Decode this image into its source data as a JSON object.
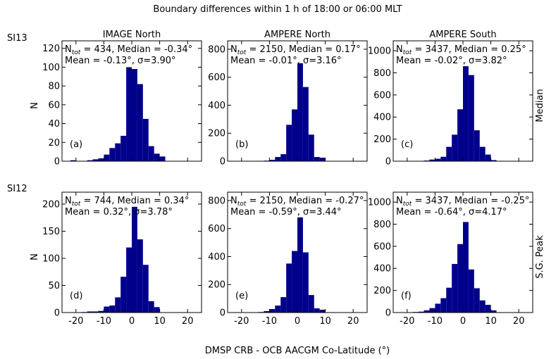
{
  "figure": {
    "suptitle": "Boundary differences within 1 h of 18:00 or 06:00 MLT",
    "xlabel": "DMSP CRB - OCB AACGM Co-Latitude (°)",
    "ylabel": "N",
    "row_labels": [
      "SI13",
      "SI12"
    ],
    "right_labels": [
      "Median",
      "S.G. Peak"
    ],
    "column_titles": [
      "IMAGE North",
      "AMPERE North",
      "AMPERE South"
    ],
    "bar_color": "#00008B"
  },
  "chart_data": [
    {
      "type": "bar",
      "panel": "(a)",
      "row": "SI13 / Median",
      "column": "IMAGE North",
      "stats_line1": "N_tot = 434, Median = -0.34°",
      "stats_line2": "Mean = -0.13°, σ=3.90°",
      "bin_width": 2,
      "bin_centers": [
        -21,
        -19,
        -15,
        -13,
        -11,
        -9,
        -7,
        -5,
        -3,
        -1,
        1,
        3,
        5,
        7,
        9,
        11
      ],
      "values": [
        1,
        0,
        1,
        2,
        3,
        7,
        14,
        19,
        27,
        100,
        98,
        82,
        45,
        16,
        8,
        5
      ],
      "xlim": [
        -25,
        25
      ],
      "ylim": [
        0,
        128
      ],
      "xticks": [
        -20,
        -10,
        0,
        10,
        20
      ],
      "yticks": [
        0,
        20,
        40,
        60,
        80,
        100,
        120
      ]
    },
    {
      "type": "bar",
      "panel": "(b)",
      "row": "SI13 / Median",
      "column": "AMPERE North",
      "stats_line1": "N_tot = 2150, Median = 0.17°",
      "stats_line2": "Mean = -0.01°, σ=3.16°",
      "bin_width": 2,
      "bin_centers": [
        -13,
        -11,
        -9,
        -7,
        -5,
        -3,
        -1,
        1,
        3,
        5,
        7,
        9
      ],
      "values": [
        2,
        4,
        10,
        30,
        50,
        260,
        370,
        700,
        530,
        190,
        30,
        25
      ],
      "xlim": [
        -25,
        25
      ],
      "ylim": [
        0,
        860
      ],
      "xticks": [
        -20,
        -10,
        0,
        10,
        20
      ],
      "yticks": [
        0,
        200,
        400,
        600,
        800
      ]
    },
    {
      "type": "bar",
      "panel": "(c)",
      "row": "SI13 / Median",
      "column": "AMPERE South",
      "stats_line1": "N_tot = 3437, Median = 0.25°",
      "stats_line2": "Mean = -0.02°, σ=3.82°",
      "bin_width": 2,
      "bin_centers": [
        -15,
        -13,
        -11,
        -9,
        -7,
        -5,
        -3,
        -1,
        1,
        3,
        5,
        7,
        9,
        11
      ],
      "values": [
        3,
        6,
        15,
        22,
        40,
        130,
        240,
        470,
        860,
        780,
        280,
        130,
        60,
        10
      ],
      "xlim": [
        -25,
        25
      ],
      "ylim": [
        0,
        1090
      ],
      "xticks": [
        -20,
        -10,
        0,
        10,
        20
      ],
      "yticks": [
        0,
        200,
        400,
        600,
        800,
        1000
      ]
    },
    {
      "type": "bar",
      "panel": "(d)",
      "row": "SI12 / S.G. Peak",
      "column": "IMAGE North",
      "stats_line1": "N_tot = 744, Median = 0.34°",
      "stats_line2": "Mean = 0.32°, σ=3.78°",
      "bin_width": 2,
      "bin_centers": [
        -17,
        -15,
        -13,
        -11,
        -9,
        -7,
        -5,
        -3,
        -1,
        1,
        3,
        5,
        7,
        9
      ],
      "values": [
        1,
        2,
        2,
        3,
        11,
        13,
        28,
        66,
        120,
        195,
        135,
        88,
        21,
        10
      ],
      "xlim": [
        -25,
        25
      ],
      "ylim": [
        0,
        222
      ],
      "xticks": [
        -20,
        -10,
        0,
        10,
        20
      ],
      "yticks": [
        0,
        50,
        100,
        150,
        200
      ]
    },
    {
      "type": "bar",
      "panel": "(e)",
      "row": "SI12 / S.G. Peak",
      "column": "AMPERE North",
      "stats_line1": "N_tot = 2150, Median = -0.27°",
      "stats_line2": "Mean = -0.59°, σ=3.44°",
      "bin_width": 2,
      "bin_centers": [
        -15,
        -13,
        -11,
        -9,
        -7,
        -5,
        -3,
        -1,
        1,
        3,
        5,
        7,
        9
      ],
      "values": [
        2,
        4,
        10,
        25,
        50,
        110,
        350,
        440,
        680,
        430,
        125,
        30,
        20
      ],
      "xlim": [
        -25,
        25
      ],
      "ylim": [
        0,
        860
      ],
      "xticks": [
        -20,
        -10,
        0,
        10,
        20
      ],
      "yticks": [
        0,
        200,
        400,
        600,
        800
      ]
    },
    {
      "type": "bar",
      "panel": "(f)",
      "row": "SI12 / S.G. Peak",
      "column": "AMPERE South",
      "stats_line1": "N_tot = 3437, Median = -0.25°",
      "stats_line2": "Mean = -0.64°, σ=4.17°",
      "bin_width": 2,
      "bin_centers": [
        -17,
        -15,
        -13,
        -11,
        -9,
        -7,
        -5,
        -3,
        -1,
        1,
        3,
        5,
        7,
        9,
        11
      ],
      "values": [
        5,
        8,
        20,
        40,
        80,
        130,
        225,
        440,
        620,
        820,
        390,
        220,
        110,
        70,
        20
      ],
      "xlim": [
        -25,
        25
      ],
      "ylim": [
        0,
        1090
      ],
      "xticks": [
        -20,
        -10,
        0,
        10,
        20
      ],
      "yticks": [
        0,
        200,
        400,
        600,
        800,
        1000
      ]
    }
  ]
}
